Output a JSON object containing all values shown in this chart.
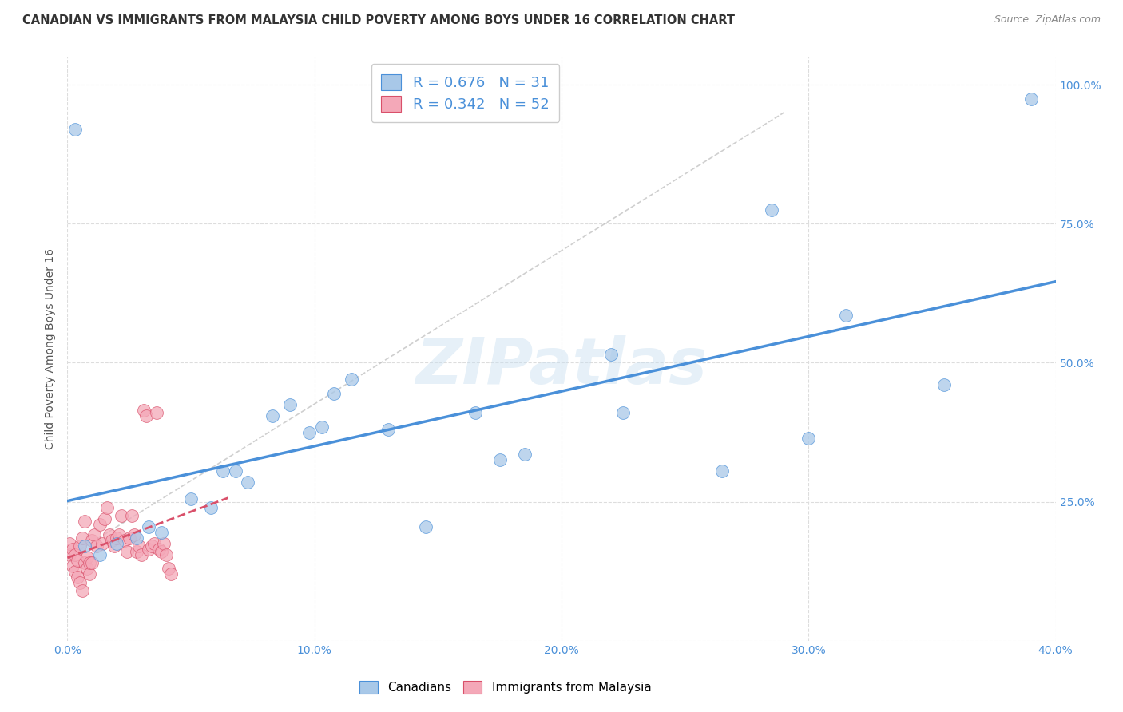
{
  "title": "CANADIAN VS IMMIGRANTS FROM MALAYSIA CHILD POVERTY AMONG BOYS UNDER 16 CORRELATION CHART",
  "source": "Source: ZipAtlas.com",
  "ylabel": "Child Poverty Among Boys Under 16",
  "xlim": [
    0.0,
    0.4
  ],
  "ylim": [
    0.0,
    1.05
  ],
  "xticks": [
    0.0,
    0.1,
    0.2,
    0.3,
    0.4
  ],
  "xtick_labels": [
    "0.0%",
    "10.0%",
    "20.0%",
    "30.0%",
    "40.0%"
  ],
  "yticks": [
    0.0,
    0.25,
    0.5,
    0.75,
    1.0
  ],
  "ytick_labels": [
    "",
    "25.0%",
    "50.0%",
    "75.0%",
    "100.0%"
  ],
  "canadians_R": 0.676,
  "canadians_N": 31,
  "immigrants_R": 0.342,
  "immigrants_N": 52,
  "canadians_color": "#a8c8e8",
  "immigrants_color": "#f4a8b8",
  "trendline_canadians_color": "#4a90d9",
  "trendline_immigrants_color": "#d9506a",
  "watermark": "ZIPatlas",
  "canadians_x": [
    0.003,
    0.007,
    0.013,
    0.02,
    0.028,
    0.033,
    0.038,
    0.05,
    0.058,
    0.063,
    0.068,
    0.073,
    0.083,
    0.09,
    0.098,
    0.103,
    0.108,
    0.115,
    0.13,
    0.145,
    0.165,
    0.175,
    0.185,
    0.22,
    0.225,
    0.265,
    0.285,
    0.3,
    0.315,
    0.355,
    0.39
  ],
  "canadians_y": [
    0.92,
    0.17,
    0.155,
    0.175,
    0.185,
    0.205,
    0.195,
    0.255,
    0.24,
    0.305,
    0.305,
    0.285,
    0.405,
    0.425,
    0.375,
    0.385,
    0.445,
    0.47,
    0.38,
    0.205,
    0.41,
    0.325,
    0.335,
    0.515,
    0.41,
    0.305,
    0.775,
    0.365,
    0.585,
    0.46,
    0.975
  ],
  "immigrants_x": [
    0.001,
    0.001,
    0.002,
    0.002,
    0.003,
    0.003,
    0.004,
    0.004,
    0.005,
    0.005,
    0.006,
    0.006,
    0.007,
    0.007,
    0.008,
    0.008,
    0.009,
    0.009,
    0.01,
    0.01,
    0.011,
    0.012,
    0.013,
    0.014,
    0.015,
    0.016,
    0.017,
    0.018,
    0.019,
    0.02,
    0.021,
    0.022,
    0.023,
    0.024,
    0.025,
    0.026,
    0.027,
    0.028,
    0.029,
    0.03,
    0.031,
    0.032,
    0.033,
    0.034,
    0.035,
    0.036,
    0.037,
    0.038,
    0.039,
    0.04,
    0.041,
    0.042
  ],
  "immigrants_y": [
    0.155,
    0.175,
    0.135,
    0.165,
    0.125,
    0.155,
    0.115,
    0.145,
    0.105,
    0.17,
    0.09,
    0.185,
    0.14,
    0.215,
    0.13,
    0.15,
    0.12,
    0.14,
    0.14,
    0.18,
    0.19,
    0.17,
    0.21,
    0.175,
    0.22,
    0.24,
    0.19,
    0.18,
    0.17,
    0.185,
    0.19,
    0.225,
    0.18,
    0.16,
    0.185,
    0.225,
    0.19,
    0.16,
    0.17,
    0.155,
    0.415,
    0.405,
    0.165,
    0.17,
    0.175,
    0.41,
    0.165,
    0.16,
    0.175,
    0.155,
    0.13,
    0.12
  ],
  "background_color": "#ffffff",
  "grid_color": "#dddddd"
}
